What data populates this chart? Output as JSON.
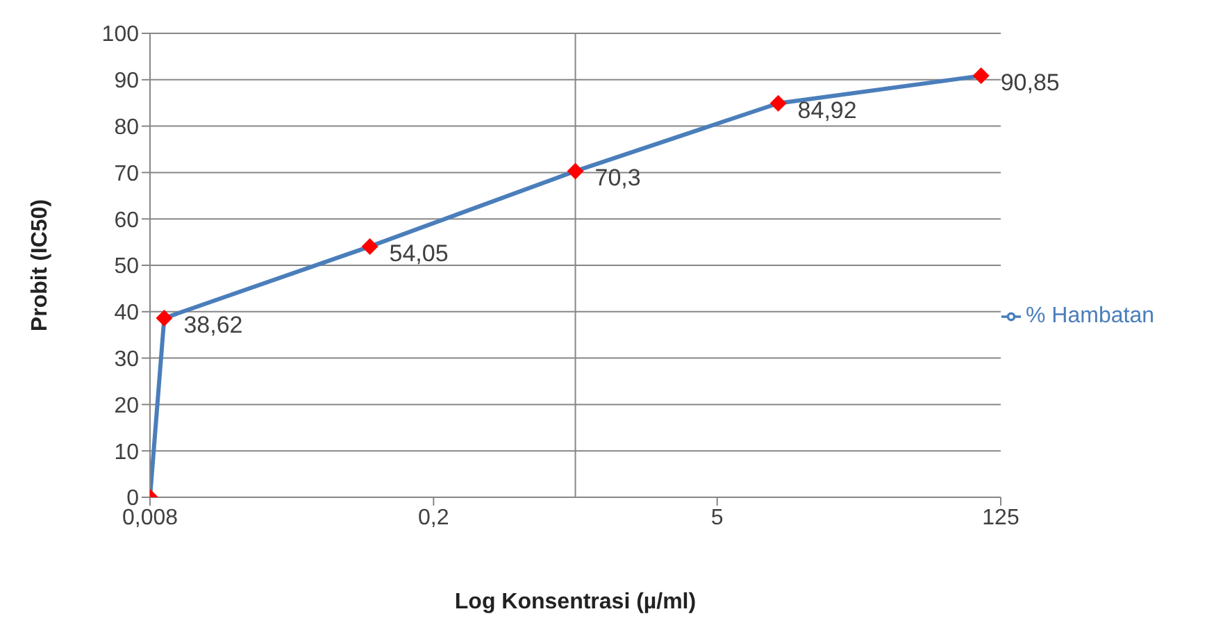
{
  "chart_data": {
    "type": "line",
    "xlabel": "Log Konsentrasi (µ/ml)",
    "ylabel": "Probit (IC50)",
    "log": "x",
    "x": [
      0.008,
      0.0094,
      0.097,
      1,
      10,
      100
    ],
    "series": [
      {
        "name": "% Hambatan",
        "color": "#4a7ebb",
        "colors": [
          "#ff0000",
          "#ff0000",
          "#ff0000",
          "#ff0000",
          "#ff0000",
          "#ff0000"
        ],
        "values": [
          0,
          38.62,
          54.05,
          70.3,
          84.92,
          90.85
        ],
        "value_labels": [
          null,
          "38,62",
          "54,05",
          "70,3",
          "84,92",
          "90,85"
        ]
      }
    ],
    "xlim": [
      0.008,
      125
    ],
    "xticks": [
      {
        "value": 0.008,
        "label": "0,008"
      },
      {
        "value": 0.2,
        "label": "0,2"
      },
      5,
      125
    ],
    "ylim": [
      0,
      100
    ],
    "yticks": [
      0,
      10,
      20,
      30,
      40,
      50,
      60,
      70,
      80,
      90,
      100
    ],
    "ref_lines": [
      {
        "axis": "x",
        "value": 1,
        "color": "#868686"
      }
    ],
    "grid": "y",
    "legend": "right",
    "marker": "diamond",
    "line_style": "solid"
  }
}
